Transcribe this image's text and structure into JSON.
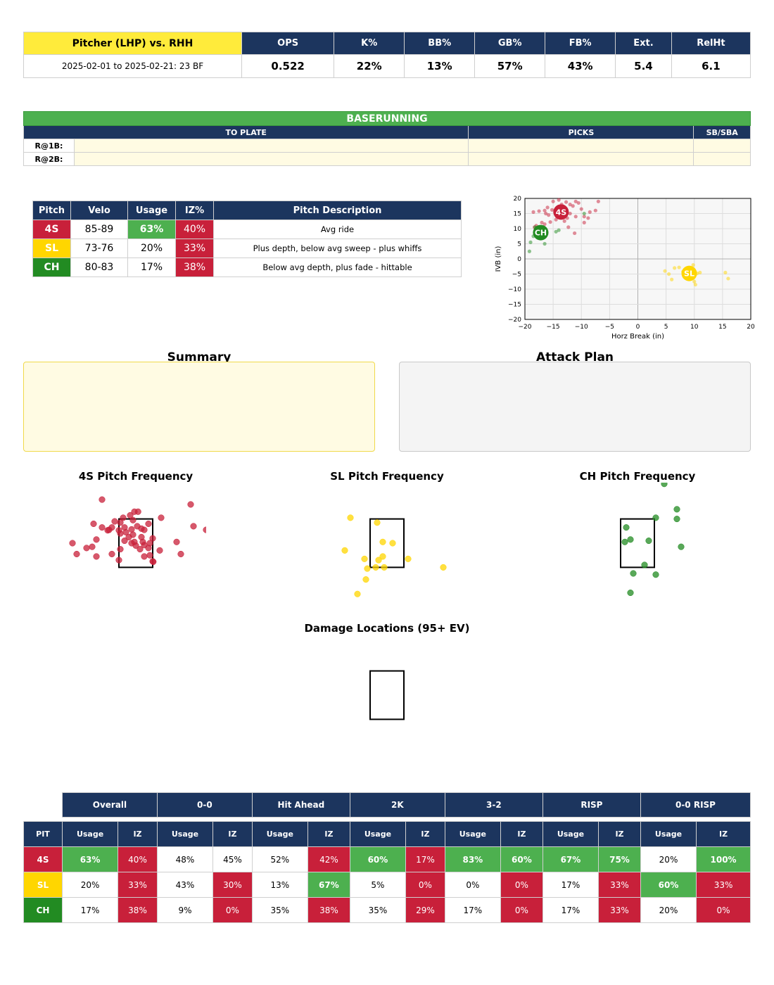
{
  "header": {
    "title": "Pitcher (LHP) vs. RHH",
    "date_range": "2025-02-01 to 2025-02-21: 23 BF",
    "stats": [
      {
        "label": "OPS",
        "value": "0.522"
      },
      {
        "label": "K%",
        "value": "22%"
      },
      {
        "label": "BB%",
        "value": "13%"
      },
      {
        "label": "GB%",
        "value": "57%"
      },
      {
        "label": "FB%",
        "value": "43%"
      },
      {
        "label": "Ext.",
        "value": "5.4"
      },
      {
        "label": "RelHt",
        "value": "6.1"
      }
    ]
  },
  "baserunning": {
    "title": "BASERUNNING",
    "columns": [
      "TO PLATE",
      "PICKS",
      "SB/SBA"
    ],
    "rows": [
      "R@1B:",
      "R@2B:"
    ]
  },
  "pitch_table": {
    "headers": [
      "Pitch",
      "Velo",
      "Usage",
      "IZ%",
      "Pitch Description"
    ],
    "rows": [
      {
        "pitch": "4S",
        "velo": "85-89",
        "usage": "63%",
        "iz": "40%",
        "desc": "Avg ride"
      },
      {
        "pitch": "SL",
        "velo": "73-76",
        "usage": "20%",
        "iz": "33%",
        "desc": "Plus depth, below avg sweep - plus whiffs"
      },
      {
        "pitch": "CH",
        "velo": "80-83",
        "usage": "17%",
        "iz": "38%",
        "desc": "Below avg depth, plus fade - hittable"
      }
    ]
  },
  "colors": {
    "navy": "#1c355e",
    "red": "#c8203a",
    "green": "#4db04f",
    "yellow": "#ffd600",
    "dark_green": "#228b22",
    "title_yellow": "#ffeb3b"
  },
  "chart_data": [
    {
      "type": "scatter",
      "xlabel": "Horz Break (in)",
      "ylabel": "IVB (in)",
      "xlim": [
        -20,
        20
      ],
      "ylim": [
        -20,
        20
      ],
      "xticks": [
        -20,
        -15,
        -10,
        -5,
        0,
        5,
        10,
        15,
        20
      ],
      "yticks": [
        20,
        15,
        10,
        5,
        0,
        -5,
        -10,
        -15,
        -20
      ],
      "grid": true,
      "series": [
        {
          "name": "4S",
          "color": "#c8203a",
          "centroid": [
            -13.6,
            15.5
          ],
          "points": [
            [
              -18.5,
              15.5
            ],
            [
              -17.5,
              15.8
            ],
            [
              -16.5,
              16
            ],
            [
              -16,
              17
            ],
            [
              -15.2,
              16.2
            ],
            [
              -15,
              19
            ],
            [
              -14,
              19.5
            ],
            [
              -13.5,
              18
            ],
            [
              -12.7,
              18.8
            ],
            [
              -12,
              18
            ],
            [
              -11.5,
              17.5
            ],
            [
              -11,
              19
            ],
            [
              -10.5,
              18.5
            ],
            [
              -10,
              16.5
            ],
            [
              -9.5,
              14
            ],
            [
              -8.5,
              15.5
            ],
            [
              -7.5,
              16
            ],
            [
              -7,
              19
            ],
            [
              -12.5,
              13.5
            ],
            [
              -11,
              14
            ],
            [
              -12,
              15
            ],
            [
              -13,
              12.5
            ],
            [
              -14.5,
              13
            ],
            [
              -15.8,
              14.5
            ],
            [
              -16.5,
              11.5
            ],
            [
              -17,
              12
            ],
            [
              -18,
              11
            ],
            [
              -18.3,
              10.5
            ],
            [
              -12.3,
              10.5
            ],
            [
              -11.2,
              8.5
            ],
            [
              -9.5,
              12
            ],
            [
              -8.8,
              13.5
            ],
            [
              -14,
              16
            ],
            [
              -13.3,
              16.8
            ],
            [
              -16.3,
              15
            ],
            [
              -15.5,
              12.2
            ]
          ]
        },
        {
          "name": "SL",
          "color": "#ffd600",
          "centroid": [
            9.1,
            -4.8
          ],
          "points": [
            [
              4.8,
              -4
            ],
            [
              5.5,
              -5
            ],
            [
              6,
              -6.8
            ],
            [
              6.5,
              -3
            ],
            [
              7.3,
              -2.8
            ],
            [
              8,
              -4.2
            ],
            [
              8.5,
              -5.5
            ],
            [
              9.5,
              -6
            ],
            [
              10,
              -7.5
            ],
            [
              10.2,
              -8.5
            ],
            [
              10.5,
              -4.8
            ],
            [
              11,
              -4.5
            ],
            [
              9.8,
              -2
            ],
            [
              15.5,
              -4.5
            ],
            [
              16,
              -6.5
            ]
          ]
        },
        {
          "name": "CH",
          "color": "#228b22",
          "centroid": [
            -17.2,
            8.7
          ],
          "points": [
            [
              -19.2,
              2.5
            ],
            [
              -19,
              5.5
            ],
            [
              -18.5,
              7.5
            ],
            [
              -18.2,
              10.5
            ],
            [
              -16.5,
              5
            ],
            [
              -14.5,
              9
            ],
            [
              -14,
              9.5
            ],
            [
              -9.5,
              15
            ]
          ]
        }
      ]
    },
    {
      "type": "scatter",
      "title": "4S Pitch Frequency",
      "xlim": [
        -2.5,
        2.5
      ],
      "ylim": [
        0,
        5
      ],
      "strike_zone": true,
      "color": "#c8203a",
      "points": [
        [
          -1.2,
          4.3
        ],
        [
          1.95,
          4.1
        ],
        [
          -0.2,
          3.65
        ],
        [
          -0.05,
          3.8
        ],
        [
          0.08,
          3.8
        ],
        [
          -0.45,
          3.55
        ],
        [
          0.9,
          3.55
        ],
        [
          -0.1,
          3.45
        ],
        [
          -0.55,
          3.35
        ],
        [
          -0.75,
          3.4
        ],
        [
          -1.5,
          3.3
        ],
        [
          -1.2,
          3.15
        ],
        [
          -0.85,
          3.15
        ],
        [
          -0.4,
          3.15
        ],
        [
          0.45,
          3.3
        ],
        [
          0.2,
          3.1
        ],
        [
          0.05,
          3.2
        ],
        [
          -0.95,
          3.05
        ],
        [
          -1.0,
          3.03
        ],
        [
          -0.6,
          3.03
        ],
        [
          -0.35,
          2.95
        ],
        [
          -0.15,
          3.07
        ],
        [
          0.3,
          3.05
        ],
        [
          -0.55,
          2.9
        ],
        [
          -0.1,
          2.85
        ],
        [
          0.6,
          2.7
        ],
        [
          -0.25,
          2.75
        ],
        [
          0.2,
          2.75
        ],
        [
          -1.4,
          2.65
        ],
        [
          -0.4,
          2.6
        ],
        [
          2.05,
          3.2
        ],
        [
          2.5,
          3.05
        ],
        [
          1.45,
          2.55
        ],
        [
          -2.25,
          2.5
        ],
        [
          -0.15,
          2.5
        ],
        [
          -0.05,
          2.55
        ],
        [
          0.25,
          2.55
        ],
        [
          0.5,
          2.5
        ],
        [
          -1.55,
          2.35
        ],
        [
          -1.75,
          2.3
        ],
        [
          0.3,
          2.42
        ],
        [
          0.45,
          2.3
        ],
        [
          0.15,
          2.25
        ],
        [
          0.0,
          2.4
        ],
        [
          -0.55,
          2.25
        ],
        [
          0.85,
          2.2
        ],
        [
          -0.85,
          2.05
        ],
        [
          -2.1,
          2.05
        ],
        [
          0.5,
          2.0
        ],
        [
          1.6,
          2.05
        ],
        [
          -1.4,
          1.95
        ],
        [
          0.3,
          1.95
        ],
        [
          -0.6,
          1.8
        ],
        [
          0.6,
          1.75
        ],
        [
          0.62,
          1.73
        ]
      ]
    },
    {
      "type": "scatter",
      "title": "SL Pitch Frequency",
      "xlim": [
        -2.5,
        2.5
      ],
      "ylim": [
        0,
        5
      ],
      "strike_zone": true,
      "color": "#ffd600",
      "points": [
        [
          -1.3,
          3.55
        ],
        [
          -0.35,
          3.35
        ],
        [
          -0.15,
          2.55
        ],
        [
          0.2,
          2.5
        ],
        [
          -1.5,
          2.2
        ],
        [
          -0.15,
          1.95
        ],
        [
          -0.3,
          1.8
        ],
        [
          0.75,
          1.85
        ],
        [
          -0.8,
          1.85
        ],
        [
          2.0,
          1.5
        ],
        [
          -0.4,
          1.5
        ],
        [
          -0.7,
          1.45
        ],
        [
          -0.1,
          1.5
        ],
        [
          -0.75,
          1.0
        ],
        [
          -1.05,
          0.4
        ]
      ]
    },
    {
      "type": "scatter",
      "title": "CH Pitch Frequency",
      "xlim": [
        -2.5,
        2.5
      ],
      "ylim": [
        0,
        5
      ],
      "strike_zone": true,
      "color": "#228b22",
      "points": [
        [
          0.95,
          4.95
        ],
        [
          1.4,
          3.9
        ],
        [
          1.4,
          3.5
        ],
        [
          0.65,
          3.55
        ],
        [
          -0.4,
          3.15
        ],
        [
          -0.25,
          2.65
        ],
        [
          -0.45,
          2.55
        ],
        [
          0.4,
          2.6
        ],
        [
          1.55,
          2.35
        ],
        [
          0.25,
          1.6
        ],
        [
          -0.15,
          1.25
        ],
        [
          0.65,
          1.2
        ],
        [
          -0.25,
          0.45
        ]
      ]
    },
    {
      "type": "scatter",
      "title": "Damage Locations (95+ EV)",
      "xlim": [
        -2.5,
        2.5
      ],
      "ylim": [
        0,
        5
      ],
      "strike_zone": true,
      "points": []
    }
  ],
  "summary": {
    "title": "Summary",
    "text": ""
  },
  "attack_plan": {
    "title": "Attack Plan",
    "text": ""
  },
  "count_table": {
    "groups": [
      "Overall",
      "0-0",
      "Hit Ahead",
      "2K",
      "3-2",
      "RISP",
      "0-0 RISP"
    ],
    "pit_header": "PIT",
    "sub_headers": [
      "Usage",
      "IZ"
    ],
    "rows": [
      {
        "pitch": "4S",
        "cells": [
          "63%",
          "40%",
          "48%",
          "45%",
          "52%",
          "42%",
          "60%",
          "17%",
          "83%",
          "60%",
          "67%",
          "75%",
          "20%",
          "100%"
        ]
      },
      {
        "pitch": "SL",
        "cells": [
          "20%",
          "33%",
          "43%",
          "30%",
          "13%",
          "67%",
          "5%",
          "0%",
          "0%",
          "0%",
          "17%",
          "33%",
          "60%",
          "33%"
        ]
      },
      {
        "pitch": "CH",
        "cells": [
          "17%",
          "38%",
          "9%",
          "0%",
          "35%",
          "38%",
          "35%",
          "29%",
          "17%",
          "0%",
          "17%",
          "33%",
          "20%",
          "0%"
        ]
      }
    ]
  }
}
